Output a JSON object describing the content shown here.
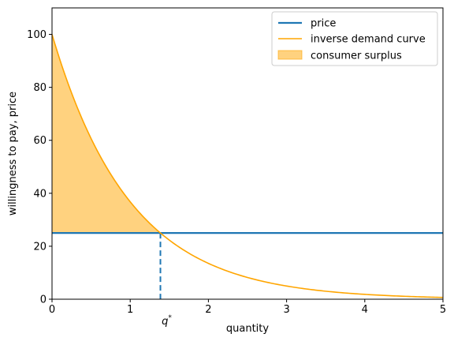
{
  "chart_data": {
    "type": "line",
    "xlabel": "quantity",
    "ylabel": "willingness to pay, price",
    "xlim": [
      0,
      5
    ],
    "ylim": [
      0,
      110
    ],
    "x_ticks": [
      0,
      1,
      2,
      3,
      4,
      5
    ],
    "y_ticks": [
      0,
      20,
      40,
      60,
      80,
      100
    ],
    "grid": false,
    "legend_position": "top-right",
    "price": 25,
    "q_star": 1.3863,
    "q_star_label": "q*",
    "series": [
      {
        "name": "price",
        "kind": "hline",
        "color": "#1f77b4",
        "x": [
          0,
          5
        ],
        "y": [
          25,
          25
        ]
      },
      {
        "name": "inverse demand curve",
        "kind": "curve",
        "color": "#ffa500",
        "x": [
          0,
          0.25,
          0.5,
          0.75,
          1,
          1.25,
          1.3863,
          1.5,
          1.75,
          2,
          2.5,
          3,
          3.5,
          4,
          4.5,
          5
        ],
        "y": [
          100,
          77.9,
          60.7,
          47.2,
          36.8,
          28.7,
          25,
          22.3,
          17.4,
          13.5,
          8.2,
          5.0,
          3.0,
          1.8,
          1.1,
          0.7
        ]
      },
      {
        "name": "consumer surplus",
        "kind": "area",
        "color": "#ffa500",
        "opacity": 0.5,
        "x": [
          0,
          0.25,
          0.5,
          0.75,
          1,
          1.25,
          1.3863
        ],
        "y_top": [
          100,
          77.9,
          60.7,
          47.2,
          36.8,
          28.7,
          25
        ],
        "y_bottom": 25
      }
    ]
  }
}
